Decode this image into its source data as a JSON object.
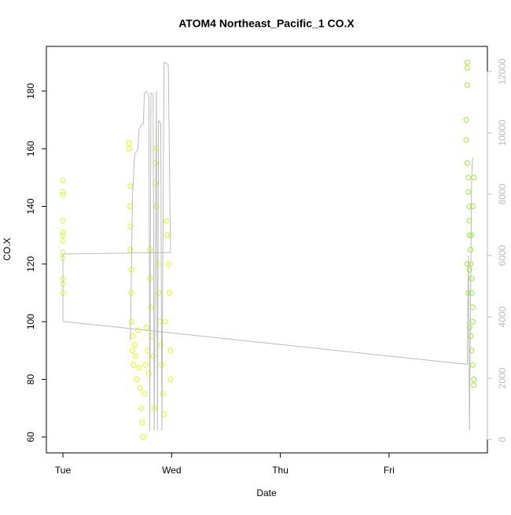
{
  "chart_data": {
    "type": "scatter",
    "title": "ATOM4 Northeast_Pacific_1 CO.X",
    "x_label": "Date",
    "y_label": "CO.X",
    "xlim": [
      -0.152,
      3.905
    ],
    "xticks": [
      {
        "value": 0,
        "label": "Tue"
      },
      {
        "value": 1,
        "label": "Wed"
      },
      {
        "value": 2,
        "label": "Thu"
      },
      {
        "value": 3,
        "label": "Fri"
      }
    ],
    "ylim": [
      54.5,
      195.5
    ],
    "yticks": [
      60,
      80,
      100,
      120,
      140,
      160,
      180
    ],
    "y2lim": [
      -436,
      12820
    ],
    "y2ticks": [
      0,
      2000,
      4000,
      6000,
      8000,
      10000,
      12000
    ],
    "y2color": "#bbbbbb",
    "series": [
      {
        "type": "scatter",
        "color": "#ccff33",
        "x": [
          0,
          0,
          0,
          0,
          0,
          0,
          0,
          0,
          0,
          0,
          0,
          0
        ],
        "values": [
          149,
          145,
          144,
          135,
          131,
          130,
          128,
          124,
          122,
          115,
          113,
          110
        ]
      },
      {
        "type": "scatter",
        "color": "#ddff00",
        "x": [
          0.61,
          0.61,
          0.62,
          0.62,
          0.62,
          0.62,
          0.63,
          0.63,
          0.63,
          0.64,
          0.64,
          0.65,
          0.66,
          0.67,
          0.68,
          0.69,
          0.7,
          0.71,
          0.72,
          0.73,
          0.74,
          0.75,
          0.76,
          0.77,
          0.78,
          0.79,
          0.8,
          0.8,
          0.81,
          0.82,
          0.83,
          0.84,
          0.85,
          0.85,
          0.86,
          0.86,
          0.87,
          0.88,
          0.89,
          0.9,
          0.91,
          0.92,
          0.93,
          0.94,
          0.95,
          0.96,
          0.97,
          0.98,
          0.99,
          0.99
        ],
        "values": [
          162,
          160,
          147,
          140,
          133,
          125,
          118,
          110,
          100,
          95,
          90,
          85,
          92,
          88,
          80,
          97,
          84,
          77,
          70,
          65,
          60,
          75,
          85,
          98,
          90,
          82,
          125,
          115,
          105,
          95,
          88,
          70,
          148,
          155,
          160,
          140,
          120,
          110,
          100,
          92,
          85,
          75,
          68,
          100,
          135,
          130,
          120,
          110,
          90,
          80
        ]
      },
      {
        "type": "scatter",
        "color": "#99ee22",
        "x": [
          3.72,
          3.72,
          3.72,
          3.71,
          3.71,
          3.72,
          3.73,
          3.73,
          3.74,
          3.74,
          3.74,
          3.75,
          3.75,
          3.76,
          3.76,
          3.77,
          3.77,
          3.74,
          3.75,
          3.76,
          3.77,
          3.78,
          3.78,
          3.72,
          3.73,
          3.74,
          3.78,
          3.77,
          3.76
        ],
        "values": [
          190,
          188,
          182,
          170,
          163,
          155,
          150,
          145,
          140,
          135,
          130,
          125,
          120,
          115,
          110,
          105,
          100,
          98,
          95,
          90,
          85,
          80,
          78,
          120,
          110,
          118,
          150,
          140,
          130
        ]
      },
      {
        "type": "line",
        "axis": "y2",
        "color": "#bbbbbb",
        "x": [
          0.62,
          0.64,
          0.66,
          0.68,
          0.69,
          0.7,
          0.72,
          0.74,
          0.75,
          0.77,
          0.78,
          0.79,
          0.8,
          0.81,
          0.83,
          0.84,
          0.86,
          0.87,
          0.88,
          0.9,
          0.91,
          0.93,
          0.96,
          0.97,
          0.99,
          0,
          0,
          3.72,
          3.73,
          3.74,
          3.76,
          3.77
        ],
        "values": [
          3200,
          7900,
          9300,
          9400,
          9500,
          10100,
          10250,
          10300,
          11300,
          11350,
          11300,
          11200,
          300,
          11300,
          11250,
          300,
          11350,
          300,
          10400,
          10300,
          300,
          12300,
          12250,
          12200,
          6100,
          6050,
          3850,
          2450,
          6000,
          300,
          8500,
          9200
        ]
      }
    ]
  }
}
